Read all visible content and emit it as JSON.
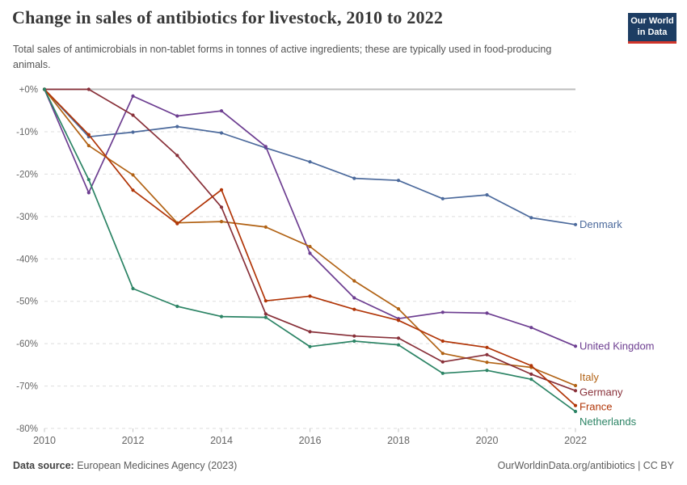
{
  "header": {
    "title": "Change in sales of antibiotics for livestock, 2010 to 2022",
    "subtitle": "Total sales of antimicrobials in non-tablet forms in tonnes of active ingredients; these are typically used in food-producing animals.",
    "logo": {
      "line1": "Our World",
      "line2": "in Data",
      "bg_color": "#1d3d63",
      "bar_color": "#d1352b"
    }
  },
  "chart_data": {
    "type": "line",
    "x": [
      2010,
      2011,
      2012,
      2013,
      2014,
      2015,
      2016,
      2017,
      2018,
      2019,
      2020,
      2021,
      2022
    ],
    "ylim": [
      -80,
      0
    ],
    "grid": "dashed-horizontal",
    "legend_position": "right-end-labels",
    "yticks": [
      {
        "value": 0,
        "label": "+0%"
      },
      {
        "value": -10,
        "label": "-10%"
      },
      {
        "value": -20,
        "label": "-20%"
      },
      {
        "value": -30,
        "label": "-30%"
      },
      {
        "value": -40,
        "label": "-40%"
      },
      {
        "value": -50,
        "label": "-50%"
      },
      {
        "value": -60,
        "label": "-60%"
      },
      {
        "value": -70,
        "label": "-70%"
      },
      {
        "value": -80,
        "label": "-80%"
      }
    ],
    "xticks": [
      {
        "value": 2010,
        "label": "2010"
      },
      {
        "value": 2012,
        "label": "2012"
      },
      {
        "value": 2014,
        "label": "2014"
      },
      {
        "value": 2016,
        "label": "2016"
      },
      {
        "value": 2018,
        "label": "2018"
      },
      {
        "value": 2020,
        "label": "2020"
      },
      {
        "value": 2022,
        "label": "2022"
      }
    ],
    "series": [
      {
        "id": "denmark",
        "name": "Denmark",
        "color": "#4C6A9C",
        "label_dy": 0,
        "values": [
          0,
          -11.2,
          -10.1,
          -8.8,
          -10.3,
          -13.8,
          -17.1,
          -21.0,
          -21.5,
          -25.8,
          -24.9,
          -30.3,
          -31.9
        ]
      },
      {
        "id": "united-kingdom",
        "name": "United Kingdom",
        "color": "#6D3E91",
        "label_dy": 0,
        "values": [
          0,
          -24.4,
          -1.6,
          -6.3,
          -5.1,
          -13.5,
          -38.7,
          -49.2,
          -54.1,
          -52.6,
          -52.8,
          -56.2,
          -60.6
        ]
      },
      {
        "id": "italy",
        "name": "Italy",
        "color": "#B16214",
        "label_dy": -10,
        "values": [
          0,
          -13.3,
          -20.2,
          -31.5,
          -31.2,
          -32.5,
          -37.1,
          -45.2,
          -51.8,
          -62.3,
          -64.4,
          -65.6,
          -69.9
        ]
      },
      {
        "id": "germany",
        "name": "Germany",
        "color": "#883039",
        "label_dy": 2,
        "values": [
          0,
          0,
          -6.1,
          -15.6,
          -27.8,
          -53.0,
          -57.2,
          -58.2,
          -58.7,
          -64.3,
          -62.6,
          -67.2,
          -71.1
        ]
      },
      {
        "id": "france",
        "name": "France",
        "color": "#B13507",
        "label_dy": 2,
        "values": [
          0,
          -10.7,
          -23.8,
          -31.7,
          -23.7,
          -49.9,
          -48.8,
          -51.9,
          -54.5,
          -59.4,
          -60.9,
          -65.2,
          -74.6
        ]
      },
      {
        "id": "netherlands",
        "name": "Netherlands",
        "color": "#2C8465",
        "label_dy": 13,
        "values": [
          0,
          -21.3,
          -47.0,
          -51.2,
          -53.6,
          -53.8,
          -60.7,
          -59.4,
          -60.3,
          -67.0,
          -66.3,
          -68.4,
          -76.0
        ]
      }
    ]
  },
  "footer": {
    "source_label": "Data source:",
    "source_value": " European Medicines Agency (2023)",
    "attribution": "OurWorldinData.org/antibiotics | CC BY"
  }
}
